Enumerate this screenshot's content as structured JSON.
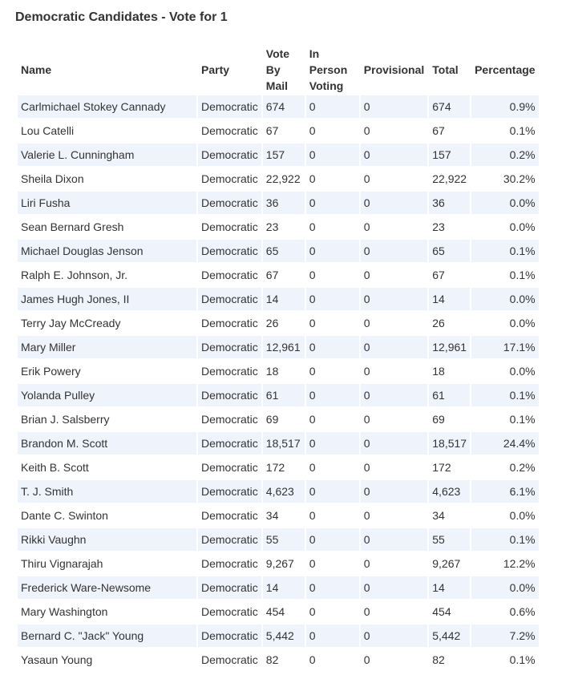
{
  "title": "Democratic Candidates - Vote for 1",
  "columns": {
    "name": "Name",
    "party": "Party",
    "vote_by_mail": "Vote By Mail",
    "in_person": "In Person Voting",
    "provisional": "Provisional",
    "total": "Total",
    "percentage": "Percentage"
  },
  "rows": [
    {
      "name": "Carlmichael Stokey Cannady",
      "party": "Democratic",
      "mail": "674",
      "in_person": "0",
      "provisional": "0",
      "total": "674",
      "pct": "0.9%"
    },
    {
      "name": "Lou Catelli",
      "party": "Democratic",
      "mail": "67",
      "in_person": "0",
      "provisional": "0",
      "total": "67",
      "pct": "0.1%"
    },
    {
      "name": "Valerie L. Cunningham",
      "party": "Democratic",
      "mail": "157",
      "in_person": "0",
      "provisional": "0",
      "total": "157",
      "pct": "0.2%"
    },
    {
      "name": "Sheila Dixon",
      "party": "Democratic",
      "mail": "22,922",
      "in_person": "0",
      "provisional": "0",
      "total": "22,922",
      "pct": "30.2%"
    },
    {
      "name": "Liri Fusha",
      "party": "Democratic",
      "mail": "36",
      "in_person": "0",
      "provisional": "0",
      "total": "36",
      "pct": "0.0%"
    },
    {
      "name": "Sean Bernard Gresh",
      "party": "Democratic",
      "mail": "23",
      "in_person": "0",
      "provisional": "0",
      "total": "23",
      "pct": "0.0%"
    },
    {
      "name": "Michael Douglas Jenson",
      "party": "Democratic",
      "mail": "65",
      "in_person": "0",
      "provisional": "0",
      "total": "65",
      "pct": "0.1%"
    },
    {
      "name": "Ralph E. Johnson, Jr.",
      "party": "Democratic",
      "mail": "67",
      "in_person": "0",
      "provisional": "0",
      "total": "67",
      "pct": "0.1%"
    },
    {
      "name": "James Hugh Jones, II",
      "party": "Democratic",
      "mail": "14",
      "in_person": "0",
      "provisional": "0",
      "total": "14",
      "pct": "0.0%"
    },
    {
      "name": "Terry Jay McCready",
      "party": "Democratic",
      "mail": "26",
      "in_person": "0",
      "provisional": "0",
      "total": "26",
      "pct": "0.0%"
    },
    {
      "name": "Mary Miller",
      "party": "Democratic",
      "mail": "12,961",
      "in_person": "0",
      "provisional": "0",
      "total": "12,961",
      "pct": "17.1%"
    },
    {
      "name": "Erik Powery",
      "party": "Democratic",
      "mail": "18",
      "in_person": "0",
      "provisional": "0",
      "total": "18",
      "pct": "0.0%"
    },
    {
      "name": "Yolanda Pulley",
      "party": "Democratic",
      "mail": "61",
      "in_person": "0",
      "provisional": "0",
      "total": "61",
      "pct": "0.1%"
    },
    {
      "name": "Brian J. Salsberry",
      "party": "Democratic",
      "mail": "69",
      "in_person": "0",
      "provisional": "0",
      "total": "69",
      "pct": "0.1%"
    },
    {
      "name": "Brandon M. Scott",
      "party": "Democratic",
      "mail": "18,517",
      "in_person": "0",
      "provisional": "0",
      "total": "18,517",
      "pct": "24.4%"
    },
    {
      "name": "Keith B. Scott",
      "party": "Democratic",
      "mail": "172",
      "in_person": "0",
      "provisional": "0",
      "total": "172",
      "pct": "0.2%"
    },
    {
      "name": "T. J. Smith",
      "party": "Democratic",
      "mail": "4,623",
      "in_person": "0",
      "provisional": "0",
      "total": "4,623",
      "pct": "6.1%"
    },
    {
      "name": "Dante C. Swinton",
      "party": "Democratic",
      "mail": "34",
      "in_person": "0",
      "provisional": "0",
      "total": "34",
      "pct": "0.0%"
    },
    {
      "name": "Rikki Vaughn",
      "party": "Democratic",
      "mail": "55",
      "in_person": "0",
      "provisional": "0",
      "total": "55",
      "pct": "0.1%"
    },
    {
      "name": "Thiru Vignarajah",
      "party": "Democratic",
      "mail": "9,267",
      "in_person": "0",
      "provisional": "0",
      "total": "9,267",
      "pct": "12.2%"
    },
    {
      "name": "Frederick Ware-Newsome",
      "party": "Democratic",
      "mail": "14",
      "in_person": "0",
      "provisional": "0",
      "total": "14",
      "pct": "0.0%"
    },
    {
      "name": "Mary Washington",
      "party": "Democratic",
      "mail": "454",
      "in_person": "0",
      "provisional": "0",
      "total": "454",
      "pct": "0.6%"
    },
    {
      "name": "Bernard C. \"Jack\" Young",
      "party": "Democratic",
      "mail": "5,442",
      "in_person": "0",
      "provisional": "0",
      "total": "5,442",
      "pct": "7.2%"
    },
    {
      "name": "Yasaun Young",
      "party": "Democratic",
      "mail": "82",
      "in_person": "0",
      "provisional": "0",
      "total": "82",
      "pct": "0.1%"
    }
  ],
  "colors": {
    "stripe": "#eff3fb",
    "text": "#333333"
  }
}
